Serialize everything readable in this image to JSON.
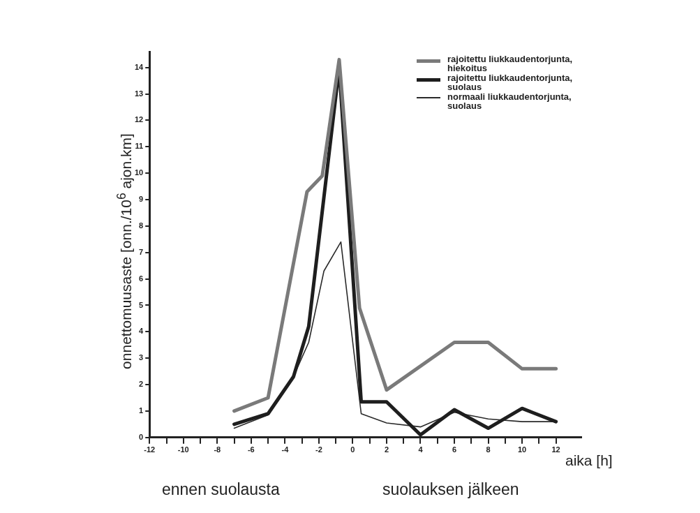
{
  "chart_data": {
    "type": "line",
    "xlabel": "aika [h]",
    "ylabel": "onnettomuusaste [onn./10$^{6}$ ajon.km]",
    "annotations": [
      "ennen suolausta",
      "suolauksen jälkeen"
    ],
    "series": [
      {
        "name": "rajoitettu liukkaudentorjunta, hiekoitus",
        "color": "#7a7a7a",
        "x": [
          -7,
          -5,
          -2.7,
          -1.8,
          -0.8,
          0.4,
          2,
          6,
          8,
          10,
          12
        ],
        "values": [
          1.0,
          1.5,
          9.3,
          9.9,
          14.3,
          4.9,
          1.8,
          3.6,
          3.6,
          2.6,
          2.6
        ]
      },
      {
        "name": "rajoitettu liukkaudentorjunta, suolaus",
        "color": "#1e1e1e",
        "x": [
          -7,
          -5,
          -3.5,
          -2.6,
          -0.8,
          0.5,
          2,
          4,
          6,
          8,
          10,
          12
        ],
        "values": [
          0.5,
          0.9,
          2.3,
          4.2,
          14.0,
          1.35,
          1.35,
          0.1,
          1.05,
          0.35,
          1.1,
          0.6
        ]
      },
      {
        "name": "normaali liukkaudentorjunta, suolaus",
        "color": "#2a2a2a",
        "x": [
          -7,
          -5,
          -3.5,
          -2.6,
          -1.7,
          -0.7,
          0.5,
          2,
          4,
          6,
          8,
          10,
          12
        ],
        "values": [
          0.35,
          0.85,
          2.3,
          3.6,
          6.3,
          7.4,
          0.9,
          0.55,
          0.4,
          0.95,
          0.7,
          0.6,
          0.6
        ]
      }
    ],
    "xlim": [
      -12,
      13.5
    ],
    "xticks": [
      -12,
      {
        "value": -11,
        "label": null
      },
      -10,
      {
        "value": -9,
        "label": null
      },
      -8,
      {
        "value": -7,
        "label": null
      },
      -6,
      {
        "value": -5,
        "label": null
      },
      -4,
      {
        "value": -3,
        "label": null
      },
      -2,
      {
        "value": -1,
        "label": null
      },
      0,
      {
        "value": 1,
        "label": null
      },
      2,
      {
        "value": 3,
        "label": null
      },
      4,
      {
        "value": 5,
        "label": null
      },
      6,
      {
        "value": 7,
        "label": null
      },
      8,
      {
        "value": 9,
        "label": null
      },
      10,
      {
        "value": 11,
        "label": null
      },
      12
    ],
    "ylim": [
      0,
      14.6
    ],
    "yticks": [
      0,
      1,
      2,
      3,
      4,
      5,
      6,
      7,
      8,
      9,
      10,
      11,
      12,
      13,
      14
    ],
    "grid": false,
    "legend": "top right",
    "marker": "none"
  }
}
